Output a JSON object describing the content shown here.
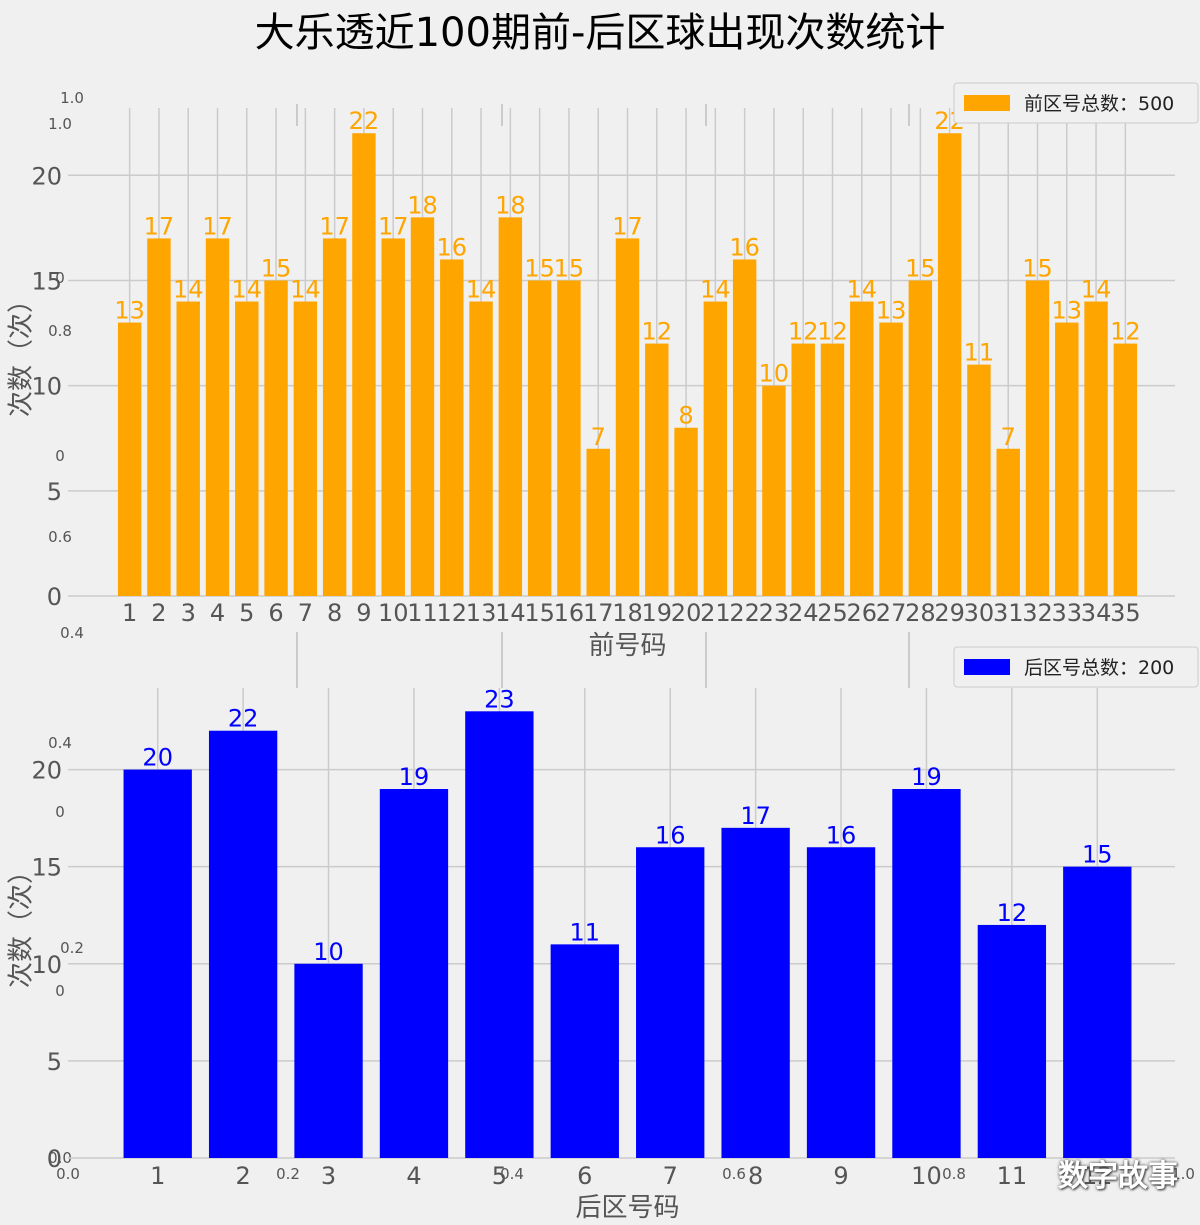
{
  "figure": {
    "title": "大乐透近100期前-后区球出现次数统计",
    "watermark": "数字故事",
    "ghost_ticks": {
      "left": [
        "1.0",
        "1.0",
        "0",
        "0.8",
        "0",
        "0.6",
        "0.4",
        "0.4",
        "0",
        "0.2",
        "0",
        "0.0"
      ],
      "bottom": [
        "0.0",
        "0.2",
        "0.4",
        "0.6",
        "0.8",
        "1.0"
      ]
    }
  },
  "colors": {
    "front": "#ffa500",
    "back": "#0000ff",
    "background": "#f0f0f0",
    "grid": "#cbcbcb"
  },
  "chart_data": [
    {
      "type": "bar",
      "xlabel": "前号码",
      "ylabel": "次数（次）",
      "legend": "前区号总数：500",
      "legend_position": "top-right",
      "grid": true,
      "ylim": [
        0,
        23.2
      ],
      "yticks": [
        0,
        5,
        10,
        15,
        20
      ],
      "categories": [
        "1",
        "2",
        "3",
        "4",
        "5",
        "6",
        "7",
        "8",
        "9",
        "10",
        "11",
        "12",
        "13",
        "14",
        "15",
        "16",
        "17",
        "18",
        "19",
        "20",
        "21",
        "22",
        "23",
        "24",
        "25",
        "26",
        "27",
        "28",
        "29",
        "30",
        "31",
        "32",
        "33",
        "34",
        "35"
      ],
      "values": [
        13,
        17,
        14,
        17,
        14,
        15,
        14,
        17,
        22,
        17,
        18,
        16,
        14,
        18,
        15,
        15,
        7,
        17,
        12,
        8,
        14,
        16,
        10,
        12,
        12,
        14,
        13,
        15,
        22,
        11,
        7,
        15,
        13,
        14,
        12
      ]
    },
    {
      "type": "bar",
      "xlabel": "后区号码",
      "ylabel": "次数（次）",
      "legend": "后区号总数：200",
      "legend_position": "top-right",
      "grid": true,
      "ylim": [
        0,
        24.2
      ],
      "yticks": [
        0,
        5,
        10,
        15,
        20
      ],
      "categories": [
        "1",
        "2",
        "3",
        "4",
        "5",
        "6",
        "7",
        "8",
        "9",
        "10",
        "11",
        "12"
      ],
      "values": [
        20,
        22,
        10,
        19,
        23,
        11,
        16,
        17,
        16,
        19,
        12,
        15
      ]
    }
  ]
}
